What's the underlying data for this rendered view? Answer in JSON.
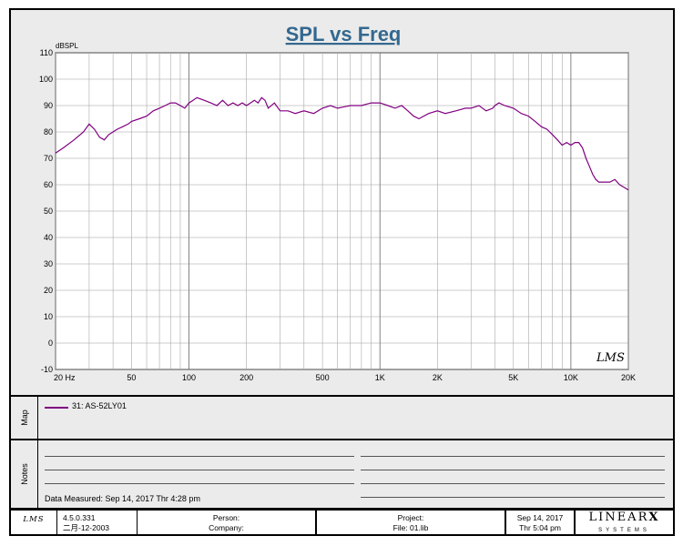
{
  "chart_data": {
    "type": "line",
    "title": "SPL vs Freq",
    "ylabel": "dBSPL",
    "xlabel": "",
    "xscale": "log",
    "xlim": [
      20,
      20000
    ],
    "ylim": [
      -10,
      110
    ],
    "yticks": [
      110,
      100,
      90,
      80,
      70,
      60,
      50,
      40,
      30,
      20,
      10,
      0,
      -10
    ],
    "yticks_labels": [
      "110",
      "100",
      "90",
      "80",
      "70",
      "60",
      "50",
      "40",
      "30",
      "20",
      "10",
      "0",
      "-10"
    ],
    "xticks": [
      20,
      50,
      100,
      200,
      500,
      1000,
      2000,
      5000,
      10000,
      20000
    ],
    "xticks_labels": [
      "20  Hz",
      "50",
      "100",
      "200",
      "500",
      "1K",
      "2K",
      "5K",
      "10K",
      "20K"
    ],
    "grid": true,
    "watermark": "LMS",
    "series": [
      {
        "name": "31: AS-52LY01",
        "color": "#800080",
        "x": [
          20,
          22,
          25,
          28,
          30,
          32,
          34,
          36,
          38,
          40,
          42,
          45,
          48,
          50,
          55,
          60,
          65,
          70,
          75,
          80,
          85,
          90,
          95,
          100,
          105,
          110,
          120,
          130,
          140,
          150,
          160,
          170,
          180,
          190,
          200,
          210,
          220,
          230,
          240,
          250,
          260,
          280,
          300,
          330,
          360,
          400,
          450,
          500,
          550,
          600,
          700,
          800,
          900,
          1000,
          1100,
          1200,
          1300,
          1400,
          1500,
          1600,
          1800,
          2000,
          2200,
          2500,
          2800,
          3000,
          3300,
          3600,
          3900,
          4000,
          4200,
          4500,
          5000,
          5500,
          6000,
          6500,
          7000,
          7500,
          8000,
          8500,
          9000,
          9500,
          10000,
          10500,
          11000,
          11500,
          12000,
          12500,
          13000,
          13500,
          14000,
          15000,
          16000,
          17000,
          18000,
          19000,
          20000
        ],
        "y": [
          72,
          74,
          77,
          80,
          83,
          81,
          78,
          77,
          79,
          80,
          81,
          82,
          83,
          84,
          85,
          86,
          88,
          89,
          90,
          91,
          91,
          90,
          89,
          91,
          92,
          93,
          92,
          91,
          90,
          92,
          90,
          91,
          90,
          91,
          90,
          91,
          92,
          91,
          93,
          92,
          89,
          91,
          88,
          88,
          87,
          88,
          87,
          89,
          90,
          89,
          90,
          90,
          91,
          91,
          90,
          89,
          90,
          88,
          86,
          85,
          87,
          88,
          87,
          88,
          89,
          89,
          90,
          88,
          89,
          90,
          91,
          90,
          89,
          87,
          86,
          84,
          82,
          81,
          79,
          77,
          75,
          76,
          75,
          76,
          76,
          74,
          70,
          67,
          64,
          62,
          61,
          61,
          61,
          62,
          60,
          59,
          58
        ]
      }
    ]
  },
  "map": {
    "label": "Map",
    "legend_entry": "31: AS-52LY01"
  },
  "notes": {
    "label": "Notes",
    "measured": "Data Measured: Sep 14, 2017  Thr  4:28 pm"
  },
  "footer": {
    "logo": "LMS",
    "version": "4.5.0.331",
    "version_date": "二月-12-2003",
    "person_label": "Person:",
    "company_label": "Company:",
    "project_label": "Project:",
    "file_label": "File: 01.lib",
    "date": "Sep 14, 2017",
    "time": "Thr  5:04 pm",
    "brand_main": "LINEAR",
    "brand_x": "X",
    "brand_sub": "SYSTEMS"
  }
}
